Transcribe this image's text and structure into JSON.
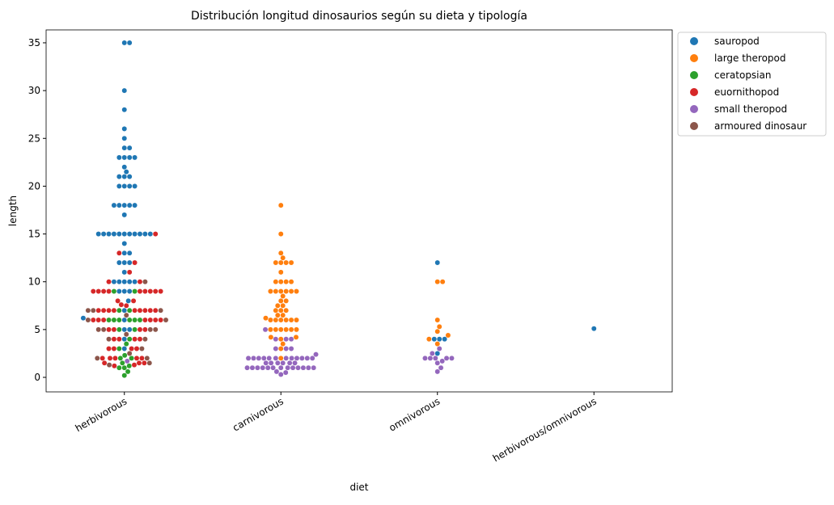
{
  "chart_data": {
    "type": "swarm",
    "title": "Distribución longitud dinosaurios según su dieta y tipología",
    "x_label": "diet",
    "y_label": "length",
    "categories": [
      "herbivorous",
      "carnivorous",
      "omnivorous",
      "herbivorous/omnivorous"
    ],
    "ylim": [
      -1.52,
      36.35
    ],
    "yticks": [
      0,
      5,
      10,
      15,
      20,
      25,
      30,
      35
    ],
    "legend": "upper right outside",
    "series": [
      {
        "name": "sauropod",
        "color": "#1f77b4",
        "x": [
          "herbivorous",
          "herbivorous",
          "herbivorous",
          "herbivorous",
          "herbivorous",
          "herbivorous",
          "herbivorous",
          "herbivorous",
          "herbivorous",
          "herbivorous",
          "herbivorous",
          "herbivorous",
          "herbivorous",
          "herbivorous",
          "herbivorous",
          "herbivorous",
          "herbivorous",
          "herbivorous",
          "herbivorous",
          "herbivorous",
          "herbivorous",
          "herbivorous",
          "herbivorous",
          "herbivorous",
          "herbivorous",
          "herbivorous",
          "herbivorous",
          "herbivorous",
          "herbivorous",
          "herbivorous",
          "herbivorous",
          "herbivorous",
          "herbivorous",
          "herbivorous",
          "herbivorous",
          "herbivorous",
          "herbivorous",
          "herbivorous",
          "herbivorous",
          "herbivorous",
          "herbivorous",
          "herbivorous",
          "herbivorous",
          "herbivorous",
          "herbivorous",
          "herbivorous",
          "herbivorous",
          "herbivorous",
          "herbivorous",
          "herbivorous",
          "herbivorous",
          "herbivorous",
          "herbivorous",
          "herbivorous",
          "herbivorous",
          "herbivorous",
          "herbivorous",
          "herbivorous",
          "herbivorous",
          "herbivorous",
          "herbivorous",
          "omnivorous",
          "omnivorous",
          "omnivorous",
          "omnivorous",
          "omnivorous",
          "herbivorous/omnivorous"
        ],
        "values": [
          35,
          35,
          30,
          28,
          26,
          25,
          24,
          24,
          23,
          23,
          23,
          23,
          22,
          21.5,
          21,
          21,
          21,
          20,
          20,
          20,
          20,
          18,
          18,
          18,
          18,
          18,
          17,
          15,
          15,
          15,
          15,
          15,
          15,
          15,
          15,
          15,
          15,
          15,
          14,
          13,
          13,
          12,
          12,
          12,
          11,
          10,
          10,
          10,
          10,
          10,
          9,
          9,
          9,
          8,
          7,
          6.2,
          6,
          5,
          5,
          4,
          3,
          12,
          4,
          4,
          4,
          2.5,
          5.1
        ]
      },
      {
        "name": "large theropod",
        "color": "#ff7f0e",
        "x": [
          "carnivorous",
          "carnivorous",
          "carnivorous",
          "carnivorous",
          "carnivorous",
          "carnivorous",
          "carnivorous",
          "carnivorous",
          "carnivorous",
          "carnivorous",
          "carnivorous",
          "carnivorous",
          "carnivorous",
          "carnivorous",
          "carnivorous",
          "carnivorous",
          "carnivorous",
          "carnivorous",
          "carnivorous",
          "carnivorous",
          "carnivorous",
          "carnivorous",
          "carnivorous",
          "carnivorous",
          "carnivorous",
          "carnivorous",
          "carnivorous",
          "carnivorous",
          "carnivorous",
          "carnivorous",
          "carnivorous",
          "carnivorous",
          "carnivorous",
          "carnivorous",
          "carnivorous",
          "carnivorous",
          "carnivorous",
          "carnivorous",
          "carnivorous",
          "carnivorous",
          "carnivorous",
          "carnivorous",
          "carnivorous",
          "carnivorous",
          "carnivorous",
          "carnivorous",
          "carnivorous",
          "carnivorous",
          "omnivorous",
          "omnivorous",
          "omnivorous",
          "omnivorous",
          "omnivorous",
          "omnivorous",
          "omnivorous",
          "omnivorous"
        ],
        "values": [
          18,
          15,
          13,
          12.5,
          12,
          12,
          12,
          12,
          11,
          10,
          10,
          10,
          10,
          9,
          9,
          9,
          9,
          9,
          9,
          8.5,
          8,
          8,
          7.5,
          7.5,
          7,
          7,
          7,
          6.5,
          6.5,
          6.2,
          6,
          6,
          6,
          6,
          6,
          6,
          5,
          5,
          5,
          5,
          5,
          5,
          4.2,
          4.2,
          4,
          3.5,
          3,
          2,
          10,
          10,
          6,
          5.3,
          4.8,
          4.4,
          4,
          3.5
        ]
      },
      {
        "name": "ceratopsian",
        "color": "#2ca02c",
        "x": [
          "herbivorous",
          "herbivorous",
          "herbivorous",
          "herbivorous",
          "herbivorous",
          "herbivorous",
          "herbivorous",
          "herbivorous",
          "herbivorous",
          "herbivorous",
          "herbivorous",
          "herbivorous",
          "herbivorous",
          "herbivorous",
          "herbivorous",
          "herbivorous",
          "herbivorous",
          "herbivorous",
          "herbivorous",
          "herbivorous",
          "herbivorous",
          "herbivorous",
          "herbivorous",
          "herbivorous"
        ],
        "values": [
          9,
          9,
          7,
          7,
          6,
          6,
          6,
          6,
          6,
          6,
          5,
          5,
          4,
          3.5,
          3,
          2.3,
          2,
          2,
          1.5,
          1.2,
          1,
          1,
          0.6,
          0.2
        ]
      },
      {
        "name": "euornithopod",
        "color": "#d62728",
        "x": [
          "herbivorous",
          "herbivorous",
          "herbivorous",
          "herbivorous",
          "herbivorous",
          "herbivorous",
          "herbivorous",
          "herbivorous",
          "herbivorous",
          "herbivorous",
          "herbivorous",
          "herbivorous",
          "herbivorous",
          "herbivorous",
          "herbivorous",
          "herbivorous",
          "herbivorous",
          "herbivorous",
          "herbivorous",
          "herbivorous",
          "herbivorous",
          "herbivorous",
          "herbivorous",
          "herbivorous",
          "herbivorous",
          "herbivorous",
          "herbivorous",
          "herbivorous",
          "herbivorous",
          "herbivorous",
          "herbivorous",
          "herbivorous",
          "herbivorous",
          "herbivorous",
          "herbivorous",
          "herbivorous",
          "herbivorous",
          "herbivorous",
          "herbivorous",
          "herbivorous",
          "herbivorous",
          "herbivorous",
          "herbivorous",
          "herbivorous",
          "herbivorous",
          "herbivorous",
          "herbivorous",
          "herbivorous",
          "herbivorous",
          "herbivorous",
          "herbivorous",
          "herbivorous",
          "herbivorous",
          "herbivorous",
          "herbivorous",
          "herbivorous",
          "herbivorous"
        ],
        "values": [
          15,
          13,
          12,
          11,
          10,
          10,
          9,
          9,
          9,
          9,
          9,
          9,
          9,
          9,
          9,
          8,
          8,
          7.6,
          7.5,
          7,
          7,
          7,
          7,
          7,
          7,
          7,
          7,
          7,
          6,
          6,
          6,
          6,
          6,
          6,
          6,
          5,
          5,
          5,
          5,
          4,
          4,
          4,
          4,
          3,
          3,
          3,
          3,
          2,
          2,
          2,
          2,
          2,
          1.5,
          1.5,
          1.5,
          1.3,
          1.2
        ]
      },
      {
        "name": "small theropod",
        "color": "#9467bd",
        "x": [
          "carnivorous",
          "carnivorous",
          "carnivorous",
          "carnivorous",
          "carnivorous",
          "carnivorous",
          "carnivorous",
          "carnivorous",
          "carnivorous",
          "carnivorous",
          "carnivorous",
          "carnivorous",
          "carnivorous",
          "carnivorous",
          "carnivorous",
          "carnivorous",
          "carnivorous",
          "carnivorous",
          "carnivorous",
          "carnivorous",
          "carnivorous",
          "carnivorous",
          "carnivorous",
          "carnivorous",
          "carnivorous",
          "carnivorous",
          "carnivorous",
          "carnivorous",
          "carnivorous",
          "carnivorous",
          "carnivorous",
          "carnivorous",
          "carnivorous",
          "carnivorous",
          "carnivorous",
          "carnivorous",
          "carnivorous",
          "carnivorous",
          "carnivorous",
          "carnivorous",
          "carnivorous",
          "carnivorous",
          "herbivorous",
          "omnivorous",
          "omnivorous",
          "omnivorous",
          "omnivorous",
          "omnivorous",
          "omnivorous",
          "omnivorous",
          "omnivorous",
          "omnivorous",
          "omnivorous",
          "omnivorous"
        ],
        "values": [
          5,
          4,
          4,
          4,
          3,
          3,
          3,
          2.4,
          2,
          2,
          2,
          2,
          2,
          2,
          2,
          2,
          2,
          2,
          2,
          2,
          1.5,
          1.5,
          1.5,
          1.5,
          1.5,
          1.5,
          1,
          1,
          1,
          1,
          1,
          1,
          1,
          1,
          1,
          1,
          1,
          1,
          1,
          0.6,
          0.3,
          0.5,
          1.7,
          3,
          2.5,
          2,
          2,
          2,
          2,
          2,
          1.7,
          1.5,
          1,
          0.6
        ]
      },
      {
        "name": "armoured dinosaur",
        "color": "#8c564b",
        "x": [
          "herbivorous",
          "herbivorous",
          "herbivorous",
          "herbivorous",
          "herbivorous",
          "herbivorous",
          "herbivorous",
          "herbivorous",
          "herbivorous",
          "herbivorous",
          "herbivorous",
          "herbivorous",
          "herbivorous",
          "herbivorous",
          "herbivorous",
          "herbivorous",
          "herbivorous",
          "herbivorous",
          "herbivorous",
          "herbivorous"
        ],
        "values": [
          10,
          7,
          7,
          7,
          6.5,
          6,
          6,
          5,
          5,
          5,
          5,
          4.5,
          4,
          4,
          3,
          2.5,
          2,
          2,
          1.5,
          1.3
        ]
      }
    ]
  }
}
